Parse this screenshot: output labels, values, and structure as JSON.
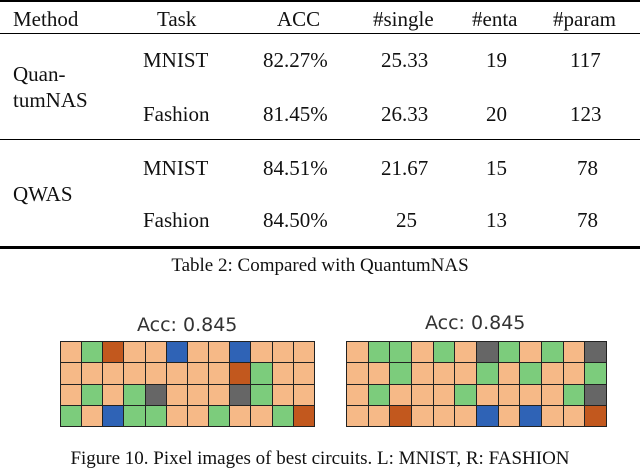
{
  "table": {
    "headers": {
      "method": "Method",
      "task": "Task",
      "acc": "ACC",
      "single": "#single",
      "enta": "#enta",
      "param": "#param"
    },
    "groups": [
      {
        "method_line1": "Quan-",
        "method_line2": "tumNAS",
        "rows": [
          {
            "task": "MNIST",
            "acc": "82.27%",
            "single": "25.33",
            "enta": "19",
            "param": "117"
          },
          {
            "task": "Fashion",
            "acc": "81.45%",
            "single": "26.33",
            "enta": "20",
            "param": "123"
          }
        ]
      },
      {
        "method_line1": "QWAS",
        "rows": [
          {
            "task": "MNIST",
            "acc": "84.51%",
            "single": "21.67",
            "enta": "15",
            "param": "78"
          },
          {
            "task": "Fashion",
            "acc": "84.50%",
            "single": "25",
            "enta": "13",
            "param": "78"
          }
        ]
      }
    ],
    "caption": "Table 2: Compared with QuantumNAS"
  },
  "figure": {
    "left_label": "Acc: 0.845",
    "right_label": "Acc: 0.845",
    "caption": "Figure 10. Pixel images of best circuits. L: MNIST, R: FASHION",
    "palette": {
      "O": "#f6b987",
      "G": "#7ccc7c",
      "B": "#2f63b6",
      "D": "#666666",
      "R": "#c2581e"
    },
    "left_grid": [
      "OGROOBOOBOOO",
      "OOOOOOOORGOO",
      "OGOGDOOODGOO",
      "GOBGGOOGOOGR"
    ],
    "right_grid": [
      "OGGOGODGOGOD",
      "OOGOOOGOGOOG",
      "OGOOOGOOOOGD",
      "OOROOOBOBOOR"
    ]
  }
}
